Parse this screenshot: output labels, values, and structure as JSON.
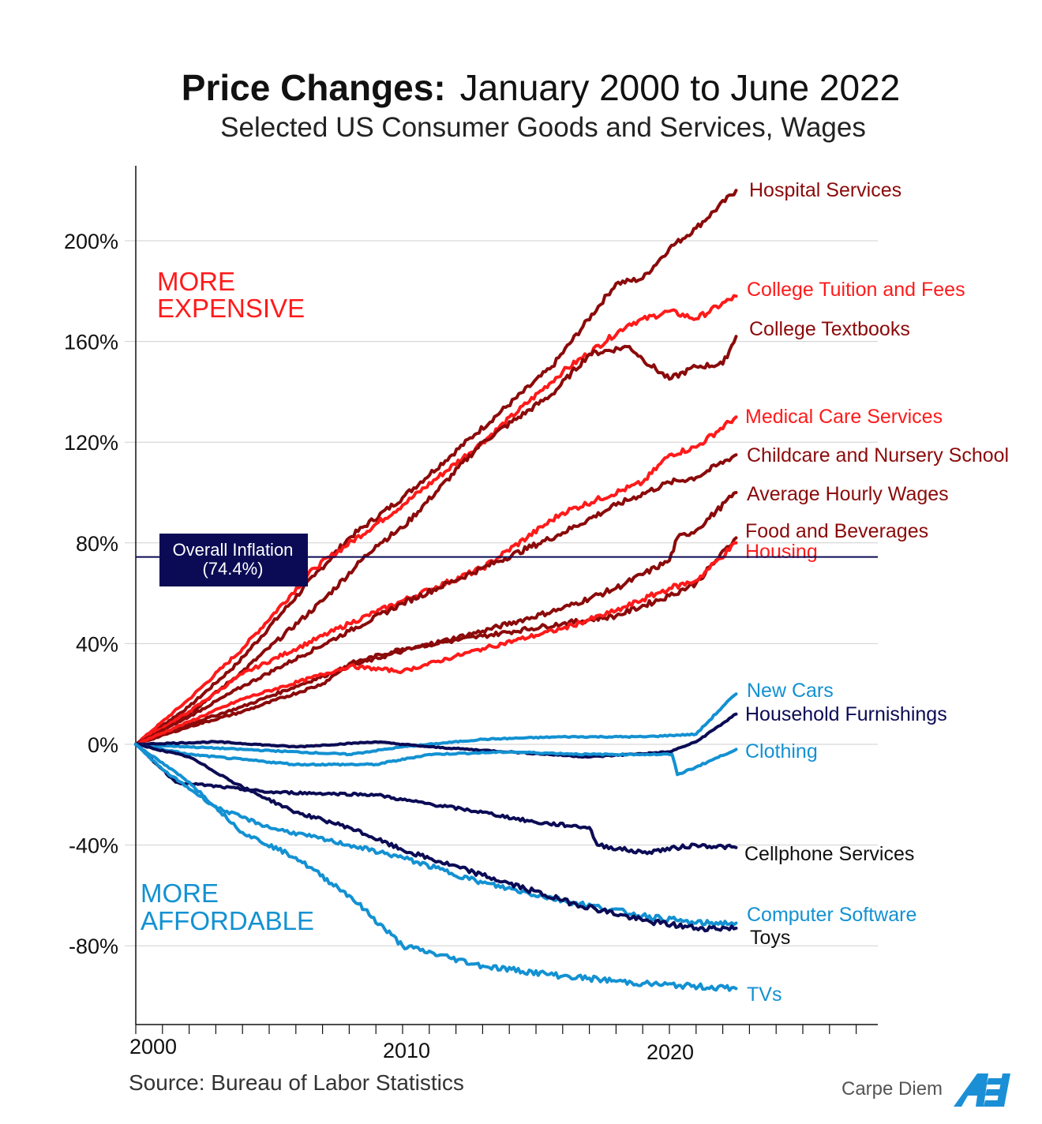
{
  "title": {
    "bold": "Price Changes:",
    "rest": "January 2000 to June 2022"
  },
  "subtitle": "Selected US Consumer Goods and Services, Wages",
  "source": "Source: Bureau of Labor Statistics",
  "brand": {
    "text": "Carpe Diem",
    "logo": "AEI"
  },
  "colors": {
    "dark_red": "#8b0a0a",
    "red": "#ff1a1a",
    "navy": "#0b0b55",
    "light_blue": "#1391d2"
  },
  "annotations": {
    "more_expensive": [
      "MORE",
      "EXPENSIVE"
    ],
    "more_affordable": [
      "MORE",
      "AFFORDABLE"
    ],
    "inflation": [
      "Overall Inflation",
      "(74.4%)"
    ]
  },
  "chart_data": {
    "type": "line",
    "xlim": [
      2000,
      2027.7
    ],
    "ylim": [
      -110,
      225
    ],
    "x_ticks": [
      2000,
      2010,
      2020
    ],
    "y_ticks": [
      -80,
      -40,
      0,
      40,
      80,
      120,
      160,
      200
    ],
    "y_tick_labels": [
      "-80%",
      "-40%",
      "0%",
      "40%",
      "80%",
      "120%",
      "160%",
      "200%"
    ],
    "grid": true,
    "reference_line": {
      "name": "Overall Inflation",
      "value": 74.4
    },
    "series": [
      {
        "name": "Hospital Services",
        "color": "dark_red",
        "points": [
          [
            2000,
            0
          ],
          [
            2002,
            15
          ],
          [
            2003.8,
            32
          ],
          [
            2006.7,
            67
          ],
          [
            2008,
            82
          ],
          [
            2010,
            98
          ],
          [
            2012.7,
            123
          ],
          [
            2015.6,
            150
          ],
          [
            2018,
            183
          ],
          [
            2019,
            185
          ],
          [
            2020,
            197
          ],
          [
            2021,
            205
          ],
          [
            2022.5,
            220
          ]
        ]
      },
      {
        "name": "College Tuition and Fees",
        "color": "red",
        "points": [
          [
            2000,
            0
          ],
          [
            2002,
            18
          ],
          [
            2004,
            38
          ],
          [
            2006.7,
            70
          ],
          [
            2010,
            95
          ],
          [
            2013,
            120
          ],
          [
            2016,
            148
          ],
          [
            2018.5,
            167
          ],
          [
            2020,
            172
          ],
          [
            2021,
            169
          ],
          [
            2022.5,
            178
          ]
        ]
      },
      {
        "name": "College Textbooks",
        "color": "dark_red",
        "points": [
          [
            2000,
            0
          ],
          [
            2002,
            12
          ],
          [
            2004,
            29
          ],
          [
            2007,
            57
          ],
          [
            2009,
            79
          ],
          [
            2010,
            86
          ],
          [
            2013,
            120
          ],
          [
            2015.6,
            139
          ],
          [
            2017,
            155
          ],
          [
            2018.5,
            158
          ],
          [
            2019,
            153
          ],
          [
            2020,
            145
          ],
          [
            2021,
            150
          ],
          [
            2022,
            151
          ],
          [
            2022.5,
            162
          ]
        ]
      },
      {
        "name": "Medical Care Services",
        "color": "red",
        "points": [
          [
            2000,
            0
          ],
          [
            2002,
            13
          ],
          [
            2004,
            28
          ],
          [
            2008,
            48
          ],
          [
            2010,
            57
          ],
          [
            2013,
            70
          ],
          [
            2016,
            92
          ],
          [
            2019,
            104
          ],
          [
            2020,
            115
          ],
          [
            2021,
            118
          ],
          [
            2022.5,
            130
          ]
        ]
      },
      {
        "name": "Childcare and Nursery School",
        "color": "dark_red",
        "points": [
          [
            2000,
            0
          ],
          [
            2002,
            11
          ],
          [
            2004,
            23
          ],
          [
            2008,
            45
          ],
          [
            2010,
            56
          ],
          [
            2013,
            70
          ],
          [
            2016,
            84
          ],
          [
            2018,
            95
          ],
          [
            2020,
            104
          ],
          [
            2021,
            106
          ],
          [
            2022.5,
            115
          ]
        ]
      },
      {
        "name": "Average Hourly Wages",
        "color": "dark_red",
        "points": [
          [
            2000,
            0
          ],
          [
            2002,
            8
          ],
          [
            2004,
            15
          ],
          [
            2008,
            31
          ],
          [
            2010,
            37
          ],
          [
            2013,
            45
          ],
          [
            2016,
            54
          ],
          [
            2018,
            62
          ],
          [
            2020,
            73
          ],
          [
            2020.3,
            82
          ],
          [
            2021,
            85
          ],
          [
            2022.5,
            100
          ]
        ]
      },
      {
        "name": "Food and Beverages",
        "color": "dark_red",
        "points": [
          [
            2000,
            0
          ],
          [
            2002,
            7
          ],
          [
            2004,
            13
          ],
          [
            2007,
            24
          ],
          [
            2008,
            32
          ],
          [
            2010,
            38
          ],
          [
            2013,
            43
          ],
          [
            2016,
            48
          ],
          [
            2018,
            51
          ],
          [
            2020,
            59
          ],
          [
            2021,
            64
          ],
          [
            2022.5,
            82
          ]
        ]
      },
      {
        "name": "Housing",
        "color": "red",
        "points": [
          [
            2000,
            0
          ],
          [
            2002,
            9
          ],
          [
            2004,
            18
          ],
          [
            2008,
            31
          ],
          [
            2010,
            29
          ],
          [
            2013,
            38
          ],
          [
            2016,
            46
          ],
          [
            2018,
            53
          ],
          [
            2020,
            62
          ],
          [
            2021,
            65
          ],
          [
            2022.5,
            80
          ]
        ]
      },
      {
        "name": "New Cars",
        "color": "light_blue",
        "points": [
          [
            2000,
            0
          ],
          [
            2002,
            -1
          ],
          [
            2004,
            -2
          ],
          [
            2008,
            -4
          ],
          [
            2010,
            -1
          ],
          [
            2013,
            2
          ],
          [
            2016,
            3
          ],
          [
            2019,
            3
          ],
          [
            2021,
            4
          ],
          [
            2022,
            15
          ],
          [
            2022.5,
            20
          ]
        ]
      },
      {
        "name": "Household Furnishings",
        "color": "navy",
        "points": [
          [
            2000,
            0
          ],
          [
            2003,
            1
          ],
          [
            2006,
            -1
          ],
          [
            2009,
            1
          ],
          [
            2011,
            -1
          ],
          [
            2014,
            -3
          ],
          [
            2017,
            -5
          ],
          [
            2020,
            -3
          ],
          [
            2021,
            1
          ],
          [
            2022.5,
            12
          ]
        ]
      },
      {
        "name": "Clothing",
        "color": "light_blue",
        "points": [
          [
            2000,
            0
          ],
          [
            2002,
            -4
          ],
          [
            2004,
            -6
          ],
          [
            2006,
            -8
          ],
          [
            2009,
            -8
          ],
          [
            2011,
            -4
          ],
          [
            2014,
            -3
          ],
          [
            2017,
            -4
          ],
          [
            2019,
            -4
          ],
          [
            2020.1,
            -4
          ],
          [
            2020.3,
            -12
          ],
          [
            2021,
            -9
          ],
          [
            2022.5,
            -2
          ]
        ]
      },
      {
        "name": "Cellphone Services",
        "color": "navy",
        "points": [
          [
            2000,
            0
          ],
          [
            2001,
            -10
          ],
          [
            2001.5,
            -15
          ],
          [
            2005,
            -19
          ],
          [
            2009,
            -20
          ],
          [
            2010,
            -22
          ],
          [
            2013,
            -27
          ],
          [
            2015,
            -31
          ],
          [
            2017,
            -33
          ],
          [
            2017.3,
            -40
          ],
          [
            2019,
            -43
          ],
          [
            2021,
            -40
          ],
          [
            2022.5,
            -41
          ]
        ]
      },
      {
        "name": "Computer Software",
        "color": "light_blue",
        "points": [
          [
            2000,
            0
          ],
          [
            2001,
            -10
          ],
          [
            2003,
            -25
          ],
          [
            2005,
            -33
          ],
          [
            2008,
            -40
          ],
          [
            2010,
            -45
          ],
          [
            2013,
            -55
          ],
          [
            2016,
            -62
          ],
          [
            2019,
            -68
          ],
          [
            2021,
            -71
          ],
          [
            2022.5,
            -71
          ]
        ]
      },
      {
        "name": "Toys",
        "color": "navy",
        "points": [
          [
            2000,
            0
          ],
          [
            2002,
            -5
          ],
          [
            2004,
            -17
          ],
          [
            2006,
            -27
          ],
          [
            2008,
            -33
          ],
          [
            2010,
            -42
          ],
          [
            2013,
            -52
          ],
          [
            2016,
            -62
          ],
          [
            2019,
            -70
          ],
          [
            2021,
            -73
          ],
          [
            2022.5,
            -73
          ]
        ]
      },
      {
        "name": "TVs",
        "color": "light_blue",
        "points": [
          [
            2000,
            0
          ],
          [
            2002,
            -15
          ],
          [
            2004,
            -35
          ],
          [
            2006,
            -45
          ],
          [
            2008,
            -60
          ],
          [
            2010,
            -80
          ],
          [
            2013,
            -88
          ],
          [
            2016,
            -92
          ],
          [
            2019,
            -95
          ],
          [
            2022.5,
            -97
          ]
        ]
      }
    ]
  }
}
